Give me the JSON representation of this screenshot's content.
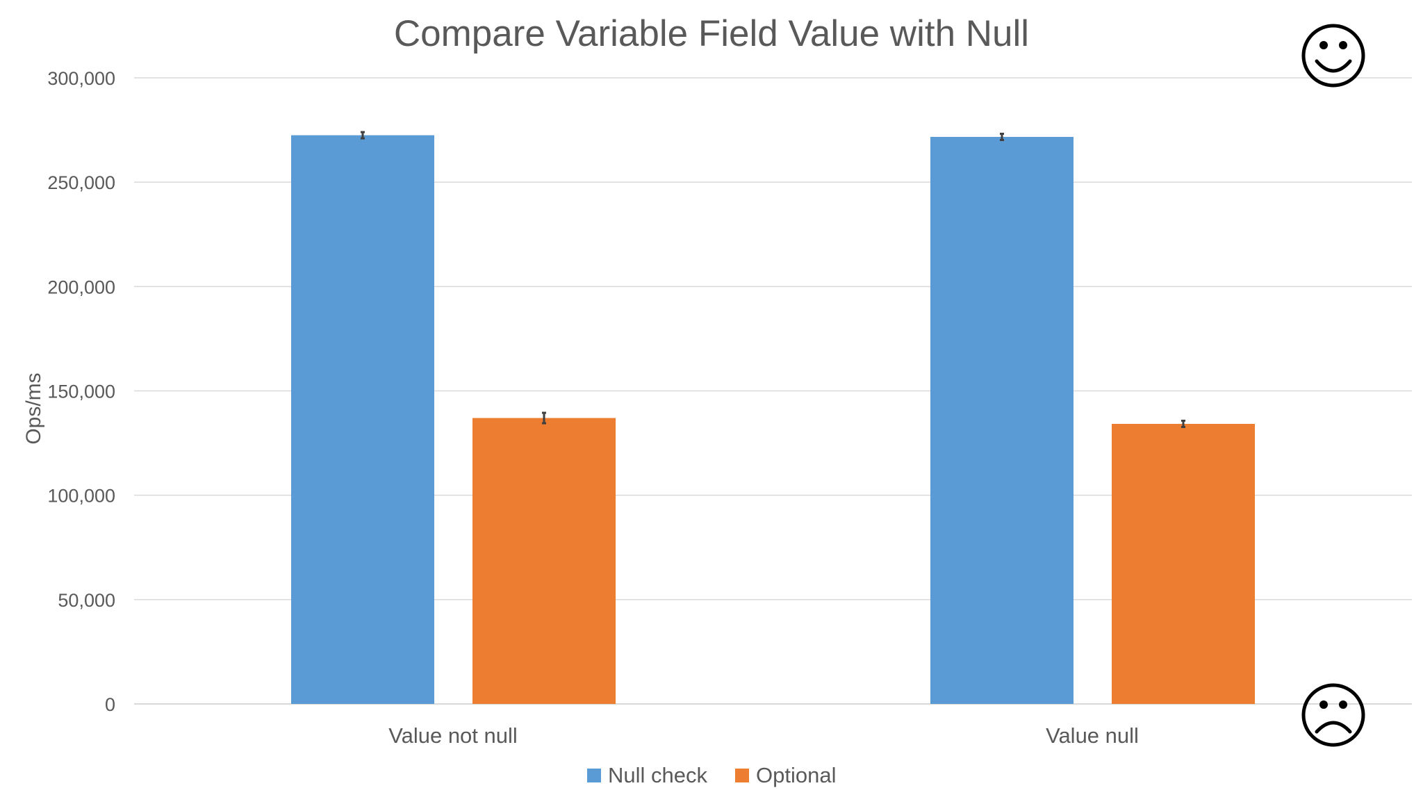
{
  "chart_data": {
    "type": "bar",
    "title": "Compare Variable Field Value with Null",
    "xlabel": "",
    "ylabel": "Ops/ms",
    "categories": [
      "Value not null",
      "Value null"
    ],
    "series": [
      {
        "name": "Null check",
        "color": "#5B9BD5",
        "values": [
          272500,
          271700
        ],
        "error": [
          1500,
          1500
        ]
      },
      {
        "name": "Optional",
        "color": "#ED7D31",
        "values": [
          137000,
          134200
        ],
        "error": [
          2500,
          1500
        ]
      }
    ],
    "ylim": [
      0,
      300000
    ],
    "yticks": [
      0,
      50000,
      100000,
      150000,
      200000,
      250000,
      300000
    ],
    "ytick_labels": [
      "0",
      "50,000",
      "100,000",
      "150,000",
      "200,000",
      "250,000",
      "300,000"
    ],
    "grid": true,
    "legend": "bottom-center"
  },
  "annotations": {
    "top_right_icon": "smiley-face-icon",
    "bottom_right_icon": "frowning-face-icon"
  }
}
